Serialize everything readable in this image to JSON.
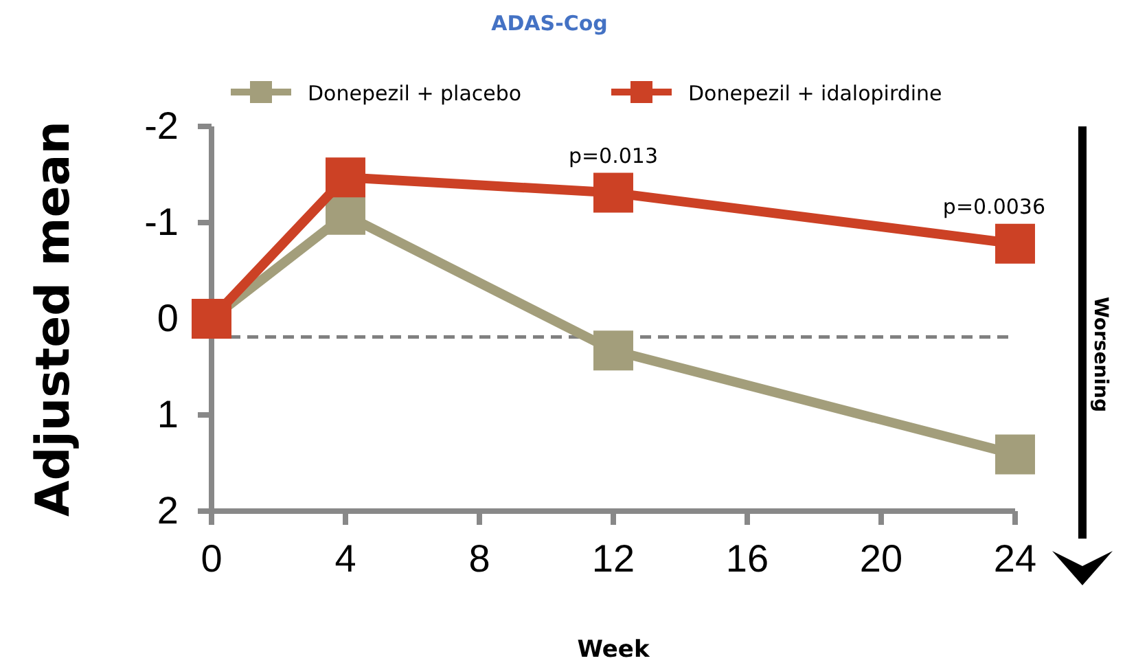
{
  "chart_data": {
    "type": "line",
    "title": "ADAS-Cog",
    "xlabel": "Week",
    "ylabel": "Adjusted mean",
    "x": [
      0,
      4,
      12,
      24
    ],
    "series": [
      {
        "name": "Donepezil + placebo",
        "color": "#a39e7b",
        "values": [
          0,
          -1.08,
          0.33,
          1.41
        ]
      },
      {
        "name": "Donepezil + idalopirdine",
        "color": "#cc4125",
        "values": [
          0,
          -1.47,
          -1.31,
          -0.78
        ]
      }
    ],
    "xlim": [
      0,
      24
    ],
    "xticks": [
      0,
      4,
      8,
      12,
      16,
      20,
      24
    ],
    "ylim": [
      2,
      -2
    ],
    "yticks": [
      -2,
      -1,
      0,
      1,
      2
    ],
    "ref_lines": [
      {
        "axis": "y",
        "value": 0.19,
        "label": null,
        "color": "#808080",
        "line_style": "dashed"
      }
    ],
    "annotations": [
      {
        "text": "p=0.013",
        "x": 12,
        "y": -1.31
      },
      {
        "text": "p=0.0036",
        "x": 24,
        "y": -0.78
      },
      "Worsening"
    ],
    "marker": "square",
    "line_style": "solid",
    "legend": "top",
    "grid": false
  }
}
